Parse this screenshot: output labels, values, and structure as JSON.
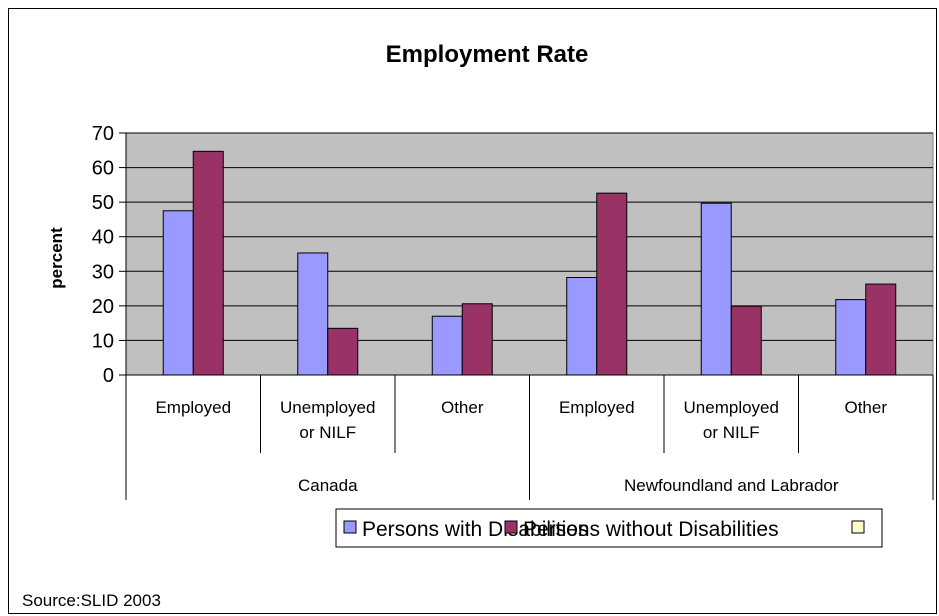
{
  "chart_data": {
    "type": "bar",
    "title": "Employment Rate",
    "ylabel": "percent",
    "xlabel": "",
    "ylim": [
      0,
      70
    ],
    "yticks": [
      0,
      10,
      20,
      30,
      40,
      50,
      60,
      70
    ],
    "grid": true,
    "legend_position": "bottom",
    "groups": [
      {
        "label": "Canada",
        "categories": [
          "Employed",
          "Unemployed or NILF",
          "Other"
        ]
      },
      {
        "label": "Newfoundland and Labrador",
        "categories": [
          "Employed",
          "Unemployed or NILF",
          "Other"
        ]
      }
    ],
    "category_lines": [
      [
        "Employed"
      ],
      [
        "Unemployed",
        "or NILF"
      ],
      [
        "Other"
      ],
      [
        "Employed"
      ],
      [
        "Unemployed",
        "or NILF"
      ],
      [
        "Other"
      ]
    ],
    "series": [
      {
        "name": "Persons with Disabilities",
        "color": "#9999ff",
        "values": [
          47.5,
          35.3,
          17.0,
          28.2,
          49.7,
          21.8
        ]
      },
      {
        "name": "Persons without Disabilities",
        "color": "#993366",
        "values": [
          64.7,
          13.5,
          20.6,
          52.6,
          19.9,
          26.3
        ]
      },
      {
        "name": "",
        "color": "#ffffcc",
        "values": []
      }
    ],
    "plot_background": "#c0c0c0"
  },
  "footer": {
    "source": "Source:SLID 2003"
  }
}
